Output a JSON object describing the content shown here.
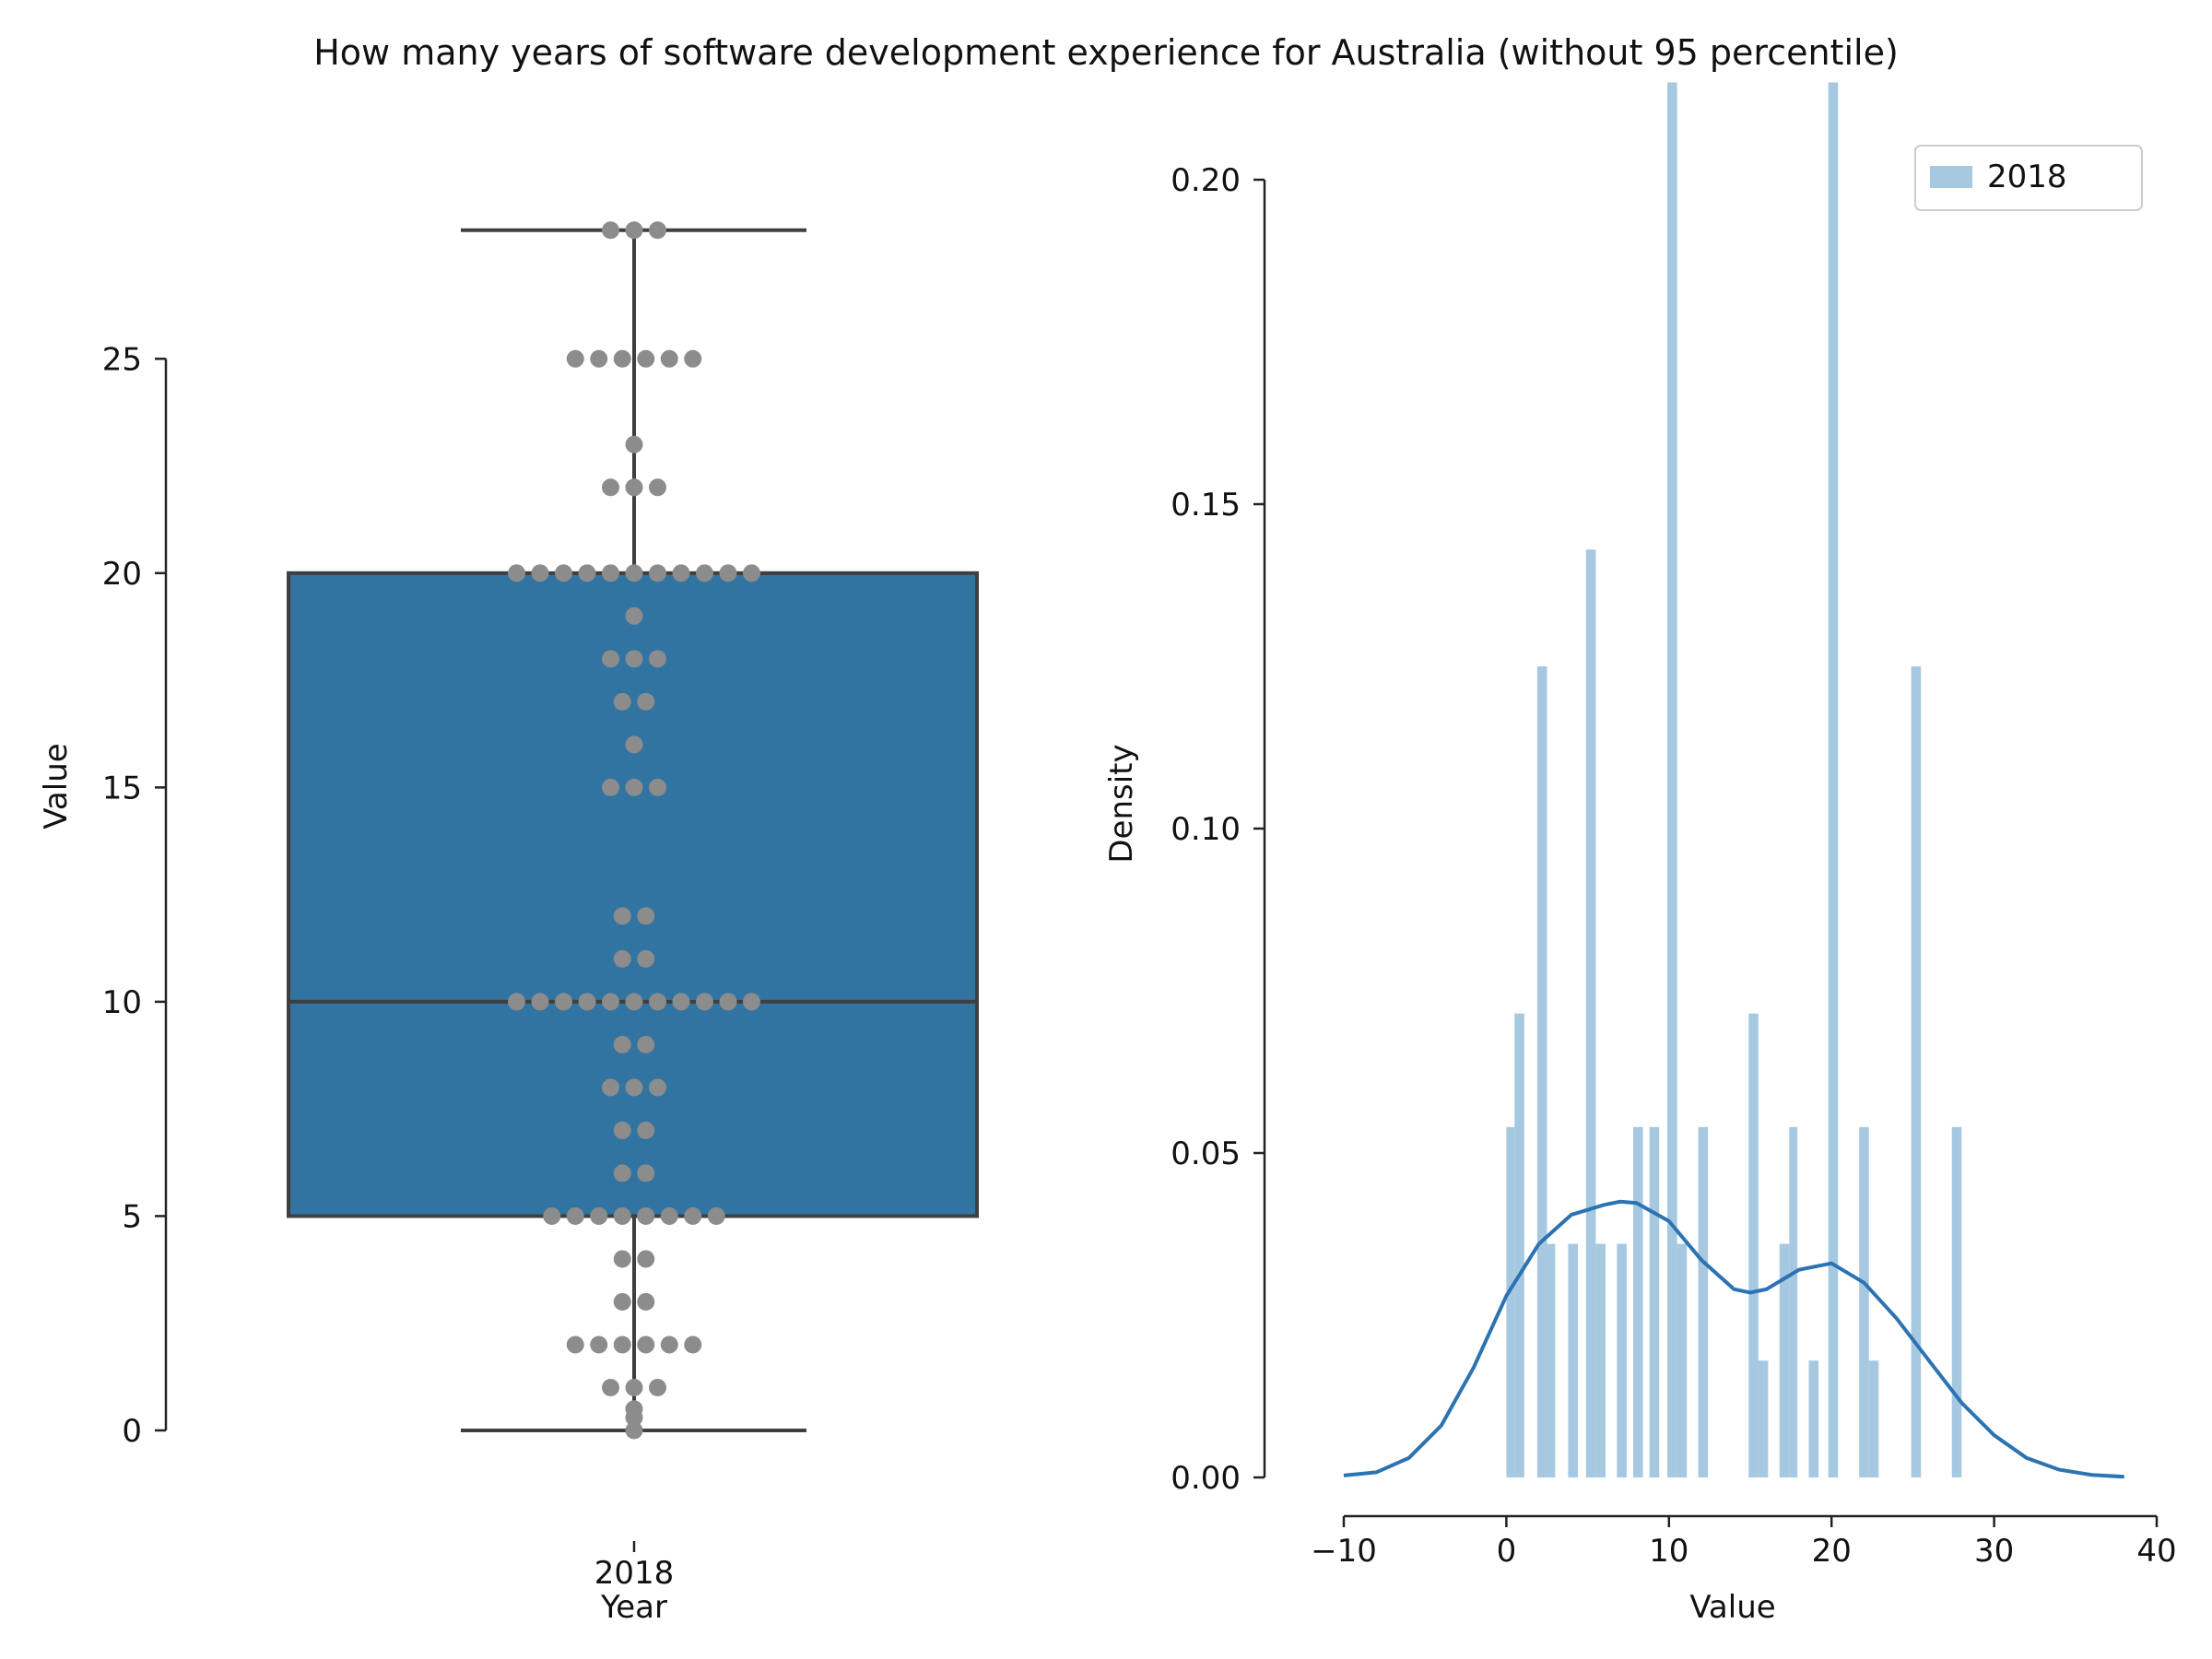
{
  "title": "How many years of software development experience for Australia (without 95 percentile)",
  "chart_data": [
    {
      "type": "box",
      "xlabel": "Year",
      "ylabel": "Value",
      "categories": [
        "2018"
      ],
      "ylim": [
        -2,
        29.5
      ],
      "yticks": [
        0,
        5,
        10,
        15,
        20,
        25
      ],
      "box": {
        "whisker_low": 0,
        "q1": 5,
        "median": 10,
        "q3": 20,
        "whisker_high": 28,
        "fill": "#3274a1",
        "line": "#3f3f3f"
      },
      "swarm": {
        "color": "#8c8c8c",
        "values": [
          {
            "y": 28,
            "count": 3
          },
          {
            "y": 25,
            "count": 6
          },
          {
            "y": 23,
            "count": 1
          },
          {
            "y": 22,
            "count": 3
          },
          {
            "y": 20,
            "count": 11
          },
          {
            "y": 19,
            "count": 1
          },
          {
            "y": 18,
            "count": 3
          },
          {
            "y": 17,
            "count": 2
          },
          {
            "y": 16,
            "count": 1
          },
          {
            "y": 15,
            "count": 3
          },
          {
            "y": 12,
            "count": 2
          },
          {
            "y": 11,
            "count": 2
          },
          {
            "y": 10,
            "count": 11
          },
          {
            "y": 9,
            "count": 2
          },
          {
            "y": 8,
            "count": 3
          },
          {
            "y": 7,
            "count": 2
          },
          {
            "y": 6,
            "count": 2
          },
          {
            "y": 5,
            "count": 8
          },
          {
            "y": 4,
            "count": 2
          },
          {
            "y": 3,
            "count": 2
          },
          {
            "y": 2,
            "count": 6
          },
          {
            "y": 1,
            "count": 3
          },
          {
            "y": 0.5,
            "count": 1
          },
          {
            "y": 0.3,
            "count": 1
          },
          {
            "y": 0,
            "count": 1
          }
        ]
      }
    },
    {
      "type": "histogram",
      "xlabel": "Value",
      "ylabel": "Density",
      "xlim": [
        -10,
        40
      ],
      "ylim": [
        0,
        0.215
      ],
      "xticks": [
        -10,
        0,
        10,
        20,
        30,
        40
      ],
      "yticks": [
        0.0,
        0.05,
        0.1,
        0.15,
        0.2
      ],
      "ytick_labels": [
        "0.00",
        "0.05",
        "0.10",
        "0.15",
        "0.20"
      ],
      "legend": {
        "label": "2018",
        "position": "top-right"
      },
      "bar_color": "#a6c8e1",
      "bars": [
        {
          "x0": 0.0,
          "x1": 0.5,
          "y": 0.054
        },
        {
          "x0": 0.5,
          "x1": 1.1,
          "y": 0.0715
        },
        {
          "x0": 1.9,
          "x1": 2.5,
          "y": 0.125
        },
        {
          "x0": 2.5,
          "x1": 3.0,
          "y": 0.036
        },
        {
          "x0": 3.8,
          "x1": 4.4,
          "y": 0.036
        },
        {
          "x0": 4.9,
          "x1": 5.5,
          "y": 0.143
        },
        {
          "x0": 5.5,
          "x1": 6.1,
          "y": 0.036
        },
        {
          "x0": 6.8,
          "x1": 7.4,
          "y": 0.036
        },
        {
          "x0": 7.8,
          "x1": 8.4,
          "y": 0.054
        },
        {
          "x0": 8.8,
          "x1": 9.4,
          "y": 0.054
        },
        {
          "x0": 9.9,
          "x1": 10.5,
          "y": 0.215
        },
        {
          "x0": 10.5,
          "x1": 11.1,
          "y": 0.036
        },
        {
          "x0": 11.8,
          "x1": 12.4,
          "y": 0.054
        },
        {
          "x0": 14.9,
          "x1": 15.5,
          "y": 0.0715
        },
        {
          "x0": 15.5,
          "x1": 16.1,
          "y": 0.018
        },
        {
          "x0": 16.8,
          "x1": 17.4,
          "y": 0.036
        },
        {
          "x0": 17.4,
          "x1": 17.9,
          "y": 0.054
        },
        {
          "x0": 18.6,
          "x1": 19.2,
          "y": 0.018
        },
        {
          "x0": 19.8,
          "x1": 20.4,
          "y": 0.215
        },
        {
          "x0": 21.7,
          "x1": 22.3,
          "y": 0.054
        },
        {
          "x0": 22.3,
          "x1": 22.9,
          "y": 0.018
        },
        {
          "x0": 24.9,
          "x1": 25.5,
          "y": 0.125
        },
        {
          "x0": 27.4,
          "x1": 28.0,
          "y": 0.054
        }
      ],
      "kde_color": "#2c73b2",
      "kde": [
        {
          "x": -10,
          "y": 0.0003
        },
        {
          "x": -8,
          "y": 0.0008
        },
        {
          "x": -6,
          "y": 0.003
        },
        {
          "x": -4,
          "y": 0.008
        },
        {
          "x": -2,
          "y": 0.017
        },
        {
          "x": 0,
          "y": 0.028
        },
        {
          "x": 2,
          "y": 0.036
        },
        {
          "x": 4,
          "y": 0.0405
        },
        {
          "x": 6,
          "y": 0.042
        },
        {
          "x": 7,
          "y": 0.0425
        },
        {
          "x": 8,
          "y": 0.0423
        },
        {
          "x": 10,
          "y": 0.0395
        },
        {
          "x": 12,
          "y": 0.0335
        },
        {
          "x": 14,
          "y": 0.029
        },
        {
          "x": 15,
          "y": 0.0285
        },
        {
          "x": 16,
          "y": 0.029
        },
        {
          "x": 18,
          "y": 0.032
        },
        {
          "x": 20,
          "y": 0.033
        },
        {
          "x": 22,
          "y": 0.03
        },
        {
          "x": 24,
          "y": 0.0245
        },
        {
          "x": 26,
          "y": 0.018
        },
        {
          "x": 28,
          "y": 0.0115
        },
        {
          "x": 30,
          "y": 0.0065
        },
        {
          "x": 32,
          "y": 0.003
        },
        {
          "x": 34,
          "y": 0.0012
        },
        {
          "x": 36,
          "y": 0.0004
        },
        {
          "x": 38,
          "y": 0.0001
        }
      ]
    }
  ]
}
